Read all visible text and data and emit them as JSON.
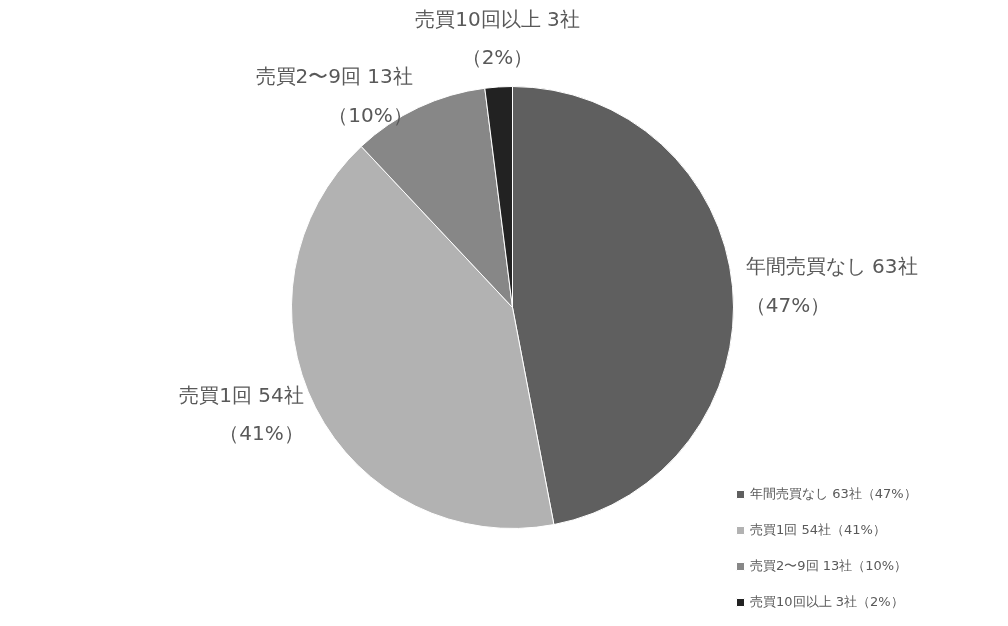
{
  "chart_data": {
    "type": "pie",
    "categories": [
      "年間売買なし 63社（47%）",
      "売買1回 54社（41%）",
      "売買2〜9回 13社（10%）",
      "売買10回以上 3社（2%）"
    ],
    "values": [
      47,
      41,
      10,
      2
    ],
    "colors": [
      "#5f5f5f",
      "#b2b2b2",
      "#878787",
      "#222222"
    ],
    "legend": "bottom right"
  }
}
